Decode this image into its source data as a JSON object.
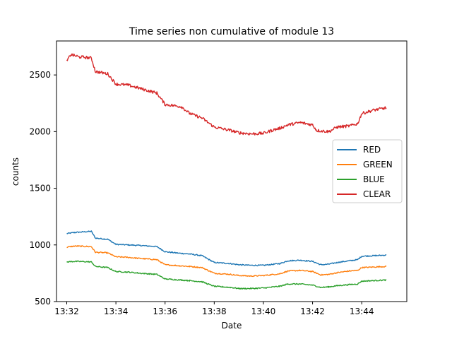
{
  "chart_data": {
    "type": "line",
    "title": "Time series non cumulative of module 13",
    "xlabel": "Date",
    "ylabel": "counts",
    "xlim": [
      "13:31:35",
      "13:45:50"
    ],
    "ylim": [
      500,
      2800
    ],
    "x_ticks": [
      "13:32",
      "13:34",
      "13:36",
      "13:38",
      "13:40",
      "13:42",
      "13:44"
    ],
    "y_ticks": [
      500,
      1000,
      1500,
      2000,
      2500
    ],
    "grid": false,
    "legend_position": "center-right",
    "series": [
      {
        "name": "RED",
        "color": "#1f77b4",
        "points": [
          [
            "13:32:00",
            1100
          ],
          [
            "13:32:20",
            1110
          ],
          [
            "13:33:00",
            1120
          ],
          [
            "13:33:10",
            1060
          ],
          [
            "13:33:40",
            1050
          ],
          [
            "13:34:00",
            1005
          ],
          [
            "13:34:30",
            1000
          ],
          [
            "13:35:00",
            995
          ],
          [
            "13:35:40",
            985
          ],
          [
            "13:36:00",
            940
          ],
          [
            "13:36:40",
            925
          ],
          [
            "13:37:00",
            920
          ],
          [
            "13:37:30",
            905
          ],
          [
            "13:38:00",
            845
          ],
          [
            "13:38:40",
            835
          ],
          [
            "13:39:00",
            825
          ],
          [
            "13:39:30",
            820
          ],
          [
            "13:40:00",
            820
          ],
          [
            "13:40:40",
            835
          ],
          [
            "13:41:00",
            860
          ],
          [
            "13:41:30",
            865
          ],
          [
            "13:42:00",
            855
          ],
          [
            "13:42:20",
            825
          ],
          [
            "13:42:40",
            830
          ],
          [
            "13:43:00",
            845
          ],
          [
            "13:43:30",
            860
          ],
          [
            "13:43:50",
            870
          ],
          [
            "13:44:00",
            900
          ],
          [
            "13:44:30",
            905
          ],
          [
            "13:45:00",
            910
          ]
        ]
      },
      {
        "name": "GREEN",
        "color": "#ff7f0e",
        "points": [
          [
            "13:32:00",
            980
          ],
          [
            "13:32:20",
            990
          ],
          [
            "13:33:00",
            985
          ],
          [
            "13:33:10",
            935
          ],
          [
            "13:33:40",
            930
          ],
          [
            "13:34:00",
            895
          ],
          [
            "13:34:30",
            890
          ],
          [
            "13:35:00",
            880
          ],
          [
            "13:35:40",
            870
          ],
          [
            "13:36:00",
            825
          ],
          [
            "13:36:40",
            815
          ],
          [
            "13:37:00",
            810
          ],
          [
            "13:37:30",
            800
          ],
          [
            "13:38:00",
            750
          ],
          [
            "13:38:40",
            740
          ],
          [
            "13:39:00",
            730
          ],
          [
            "13:39:30",
            725
          ],
          [
            "13:40:00",
            730
          ],
          [
            "13:40:40",
            745
          ],
          [
            "13:41:00",
            770
          ],
          [
            "13:41:30",
            775
          ],
          [
            "13:42:00",
            765
          ],
          [
            "13:42:20",
            735
          ],
          [
            "13:42:40",
            740
          ],
          [
            "13:43:00",
            755
          ],
          [
            "13:43:30",
            770
          ],
          [
            "13:43:50",
            775
          ],
          [
            "13:44:00",
            800
          ],
          [
            "13:44:30",
            805
          ],
          [
            "13:45:00",
            810
          ]
        ]
      },
      {
        "name": "BLUE",
        "color": "#2ca02c",
        "points": [
          [
            "13:32:00",
            850
          ],
          [
            "13:32:20",
            855
          ],
          [
            "13:33:00",
            850
          ],
          [
            "13:33:10",
            810
          ],
          [
            "13:33:40",
            800
          ],
          [
            "13:34:00",
            765
          ],
          [
            "13:34:30",
            760
          ],
          [
            "13:35:00",
            750
          ],
          [
            "13:35:40",
            740
          ],
          [
            "13:36:00",
            700
          ],
          [
            "13:36:40",
            690
          ],
          [
            "13:37:00",
            685
          ],
          [
            "13:37:30",
            675
          ],
          [
            "13:38:00",
            635
          ],
          [
            "13:38:40",
            625
          ],
          [
            "13:39:00",
            615
          ],
          [
            "13:39:30",
            615
          ],
          [
            "13:40:00",
            620
          ],
          [
            "13:40:40",
            635
          ],
          [
            "13:41:00",
            655
          ],
          [
            "13:41:30",
            655
          ],
          [
            "13:42:00",
            645
          ],
          [
            "13:42:20",
            625
          ],
          [
            "13:42:40",
            630
          ],
          [
            "13:43:00",
            640
          ],
          [
            "13:43:30",
            650
          ],
          [
            "13:43:50",
            655
          ],
          [
            "13:44:00",
            680
          ],
          [
            "13:44:30",
            685
          ],
          [
            "13:45:00",
            690
          ]
        ]
      },
      {
        "name": "CLEAR",
        "color": "#d62728",
        "points": [
          [
            "13:32:00",
            2620
          ],
          [
            "13:32:10",
            2680
          ],
          [
            "13:32:30",
            2660
          ],
          [
            "13:33:00",
            2650
          ],
          [
            "13:33:10",
            2530
          ],
          [
            "13:33:40",
            2510
          ],
          [
            "13:34:00",
            2420
          ],
          [
            "13:34:30",
            2410
          ],
          [
            "13:35:00",
            2380
          ],
          [
            "13:35:40",
            2340
          ],
          [
            "13:36:00",
            2240
          ],
          [
            "13:36:40",
            2220
          ],
          [
            "13:37:00",
            2160
          ],
          [
            "13:37:30",
            2120
          ],
          [
            "13:38:00",
            2040
          ],
          [
            "13:38:40",
            2010
          ],
          [
            "13:39:00",
            1990
          ],
          [
            "13:39:30",
            1980
          ],
          [
            "13:40:00",
            1985
          ],
          [
            "13:40:20",
            2010
          ],
          [
            "13:40:40",
            2030
          ],
          [
            "13:41:00",
            2060
          ],
          [
            "13:41:30",
            2080
          ],
          [
            "13:42:00",
            2060
          ],
          [
            "13:42:10",
            2010
          ],
          [
            "13:42:40",
            2000
          ],
          [
            "13:43:00",
            2040
          ],
          [
            "13:43:30",
            2050
          ],
          [
            "13:43:50",
            2070
          ],
          [
            "13:44:00",
            2160
          ],
          [
            "13:44:30",
            2190
          ],
          [
            "13:45:00",
            2210
          ]
        ]
      }
    ]
  }
}
